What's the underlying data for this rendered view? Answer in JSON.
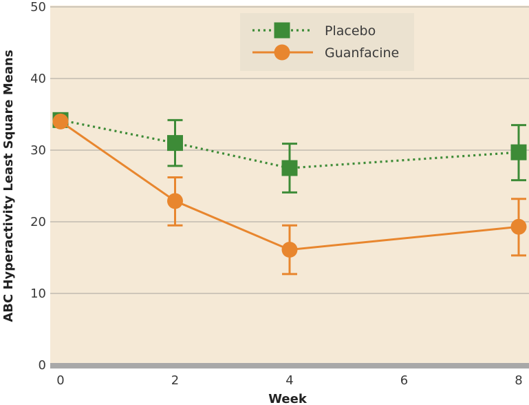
{
  "chart_data": {
    "type": "line",
    "title": "",
    "xlabel": "Week",
    "ylabel": "ABC Hyperactivity Least Square Means",
    "x": [
      0,
      2,
      4,
      8
    ],
    "xticks": [
      "0",
      "2",
      "4",
      "6",
      "8"
    ],
    "xlim": [
      0,
      8
    ],
    "yticks": [
      "0",
      "10",
      "20",
      "30",
      "40",
      "50"
    ],
    "ylim": [
      0,
      50
    ],
    "grid": true,
    "legend_position": "top-center",
    "series": [
      {
        "name": "Placebo",
        "values": [
          34.2,
          31.0,
          27.5,
          29.7
        ],
        "error_low": [
          null,
          27.8,
          24.1,
          25.8
        ],
        "error_high": [
          null,
          34.2,
          30.9,
          33.5
        ],
        "marker": "square",
        "line_style": "dotted",
        "color": "#3d8b37"
      },
      {
        "name": "Guanfacine",
        "values": [
          34.0,
          22.9,
          16.1,
          19.3
        ],
        "error_low": [
          null,
          19.5,
          12.7,
          15.3
        ],
        "error_high": [
          null,
          26.2,
          19.5,
          23.2
        ],
        "marker": "circle",
        "line_style": "solid",
        "color": "#e8862e"
      }
    ],
    "colors": {
      "plot_background": "#f5e9d6",
      "gridline": "#b8b2a8",
      "baseline": "#a8a8a8",
      "legend_background": "#ebe2d0"
    }
  }
}
